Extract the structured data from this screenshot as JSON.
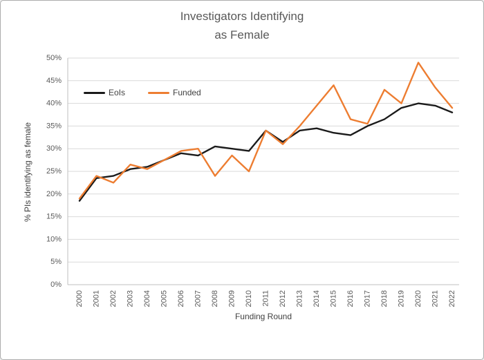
{
  "chart_data": {
    "type": "line",
    "title": "Investigators Identifying as Female",
    "title_lines": [
      "Investigators Identifying",
      "as Female"
    ],
    "xlabel": "Funding Round",
    "ylabel": "%  PIs identifying as female",
    "categories": [
      "2000",
      "2001",
      "2002",
      "2003",
      "2004",
      "2005",
      "2006",
      "2007",
      "2008",
      "2009",
      "2010",
      "2011",
      "2012",
      "2013",
      "2014",
      "2015",
      "2016",
      "2017",
      "2018",
      "2019",
      "2020",
      "2021",
      "2022"
    ],
    "series": [
      {
        "name": "EoIs",
        "color": "#1a1a1a",
        "values": [
          18.5,
          23.5,
          24,
          25.5,
          26,
          27.5,
          29,
          28.5,
          30.5,
          30,
          29.5,
          34,
          31.5,
          34,
          34.5,
          33.5,
          33,
          35,
          36.5,
          39,
          40,
          39.5,
          38
        ]
      },
      {
        "name": "Funded",
        "color": "#ED7D31",
        "values": [
          19,
          24,
          22.5,
          26.5,
          25.5,
          27.5,
          29.5,
          30,
          24,
          28.5,
          25,
          34,
          31,
          35,
          39.5,
          44,
          36.5,
          35.5,
          43,
          40,
          49,
          43.5,
          39
        ]
      }
    ],
    "ylim": [
      0,
      50
    ],
    "y_tick_step": 5,
    "y_tick_labels": [
      "0%",
      "5%",
      "10%",
      "15%",
      "20%",
      "25%",
      "30%",
      "35%",
      "40%",
      "45%",
      "50%"
    ],
    "grid": true,
    "legend_position": "inside-top-left",
    "colors": {
      "title_text": "#595959",
      "axis_text": "#595959",
      "gridline": "#d9d9d9",
      "axis_line": "#bfbfbf",
      "background": "#ffffff",
      "frame_border": "#ababab"
    }
  }
}
